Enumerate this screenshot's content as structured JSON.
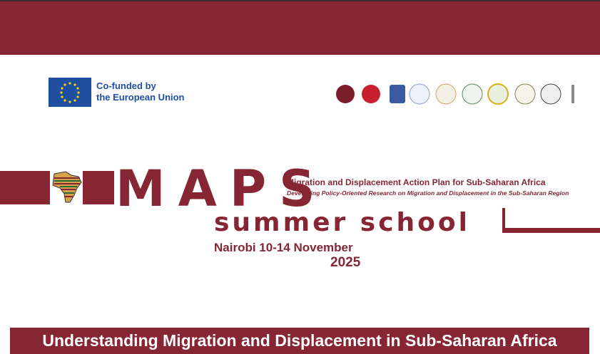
{
  "header": {
    "eu_line1": "Co-funded by",
    "eu_line2": "the European Union"
  },
  "title": {
    "acronym": "MAPS",
    "full": "Migration and Displacement Action Plan for Sub-Saharan Africa",
    "subtitle": "Developing Policy-Oriented Research on Migration and Displacement in the Sub-Saharan Region"
  },
  "event": {
    "name": "summer school",
    "location_dates": "Nairobi 10-14 November",
    "year": "2025"
  },
  "banner": {
    "text": "Understanding Migration and Displacement in Sub-Saharan Africa"
  }
}
